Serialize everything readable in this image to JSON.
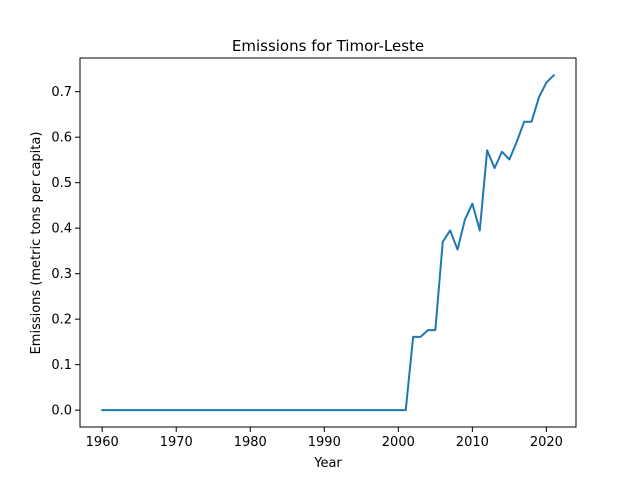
{
  "chart_data": {
    "type": "line",
    "title": "Emissions for Timor-Leste",
    "xlabel": "Year",
    "ylabel": "Emissions (metric tons per capita)",
    "xlim": [
      1957,
      2024
    ],
    "ylim": [
      -0.037,
      0.774
    ],
    "xticks": [
      1960,
      1970,
      1980,
      1990,
      2000,
      2010,
      2020
    ],
    "yticks": [
      0.0,
      0.1,
      0.2,
      0.3,
      0.4,
      0.5,
      0.6,
      0.7
    ],
    "ytick_labels": [
      "0.0",
      "0.1",
      "0.2",
      "0.3",
      "0.4",
      "0.5",
      "0.6",
      "0.7"
    ],
    "grid": false,
    "line_color": "#1f77b4",
    "series": [
      {
        "x": [
          1960,
          1961,
          1962,
          1963,
          1964,
          1965,
          1966,
          1967,
          1968,
          1969,
          1970,
          1971,
          1972,
          1973,
          1974,
          1975,
          1976,
          1977,
          1978,
          1979,
          1980,
          1981,
          1982,
          1983,
          1984,
          1985,
          1986,
          1987,
          1988,
          1989,
          1990,
          1991,
          1992,
          1993,
          1994,
          1995,
          1996,
          1997,
          1998,
          1999,
          2000,
          2001,
          2002,
          2003,
          2004,
          2005,
          2006,
          2007,
          2008,
          2009,
          2010,
          2011,
          2012,
          2013,
          2014,
          2015,
          2016,
          2017,
          2018,
          2019,
          2020,
          2021
        ],
        "y": [
          0,
          0,
          0,
          0,
          0,
          0,
          0,
          0,
          0,
          0,
          0,
          0,
          0,
          0,
          0,
          0,
          0,
          0,
          0,
          0,
          0,
          0,
          0,
          0,
          0,
          0,
          0,
          0,
          0,
          0,
          0,
          0,
          0,
          0,
          0,
          0,
          0,
          0,
          0,
          0,
          0,
          0,
          0.161,
          0.161,
          0.176,
          0.176,
          0.37,
          0.395,
          0.353,
          0.419,
          0.454,
          0.395,
          0.571,
          0.532,
          0.568,
          0.551,
          0.59,
          0.634,
          0.634,
          0.688,
          0.72,
          0.736
        ]
      }
    ]
  }
}
